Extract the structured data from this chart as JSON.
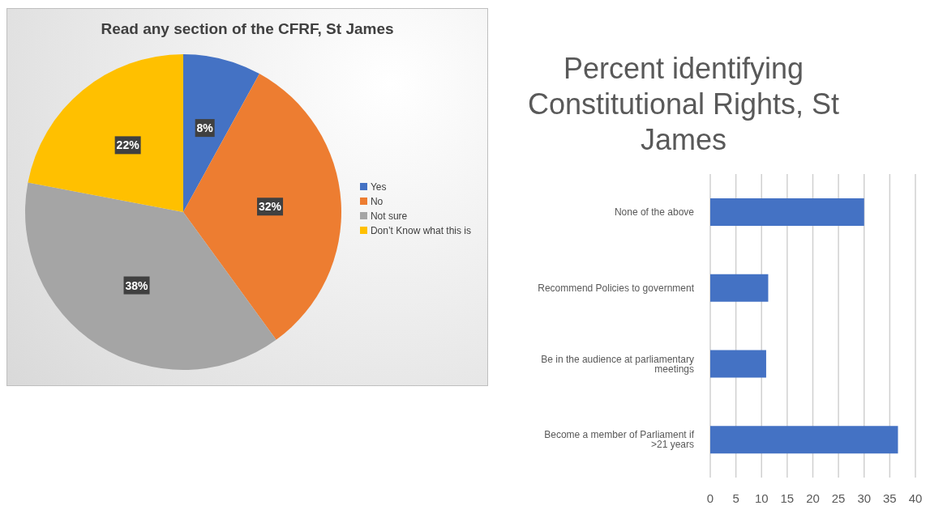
{
  "chart_data": [
    {
      "type": "pie",
      "title": "Read any section of the CFRF, St James",
      "categories": [
        "Yes",
        "No",
        "Not sure",
        "Don’t Know what this is"
      ],
      "values": [
        8,
        32,
        38,
        22
      ],
      "colors": [
        "#4472c4",
        "#ed7d31",
        "#a5a5a5",
        "#ffc000"
      ],
      "value_labels": [
        "8%",
        "32%",
        "38%",
        "22%"
      ],
      "legend": "right"
    },
    {
      "type": "bar",
      "orientation": "horizontal",
      "title": "Percent identifying Constitutional Rights, St James",
      "categories": [
        "None of the above",
        "Recommend Policies to government",
        "Be in the audience at parliamentary meetings",
        "Become a member of Parliament if  >21 years"
      ],
      "values": [
        30.0,
        11.3,
        10.9,
        36.6
      ],
      "color": "#4472c4",
      "xlim": [
        0,
        40
      ],
      "xticks": [
        0,
        5,
        10,
        15,
        20,
        25,
        30,
        35,
        40
      ],
      "grid": "x"
    }
  ]
}
